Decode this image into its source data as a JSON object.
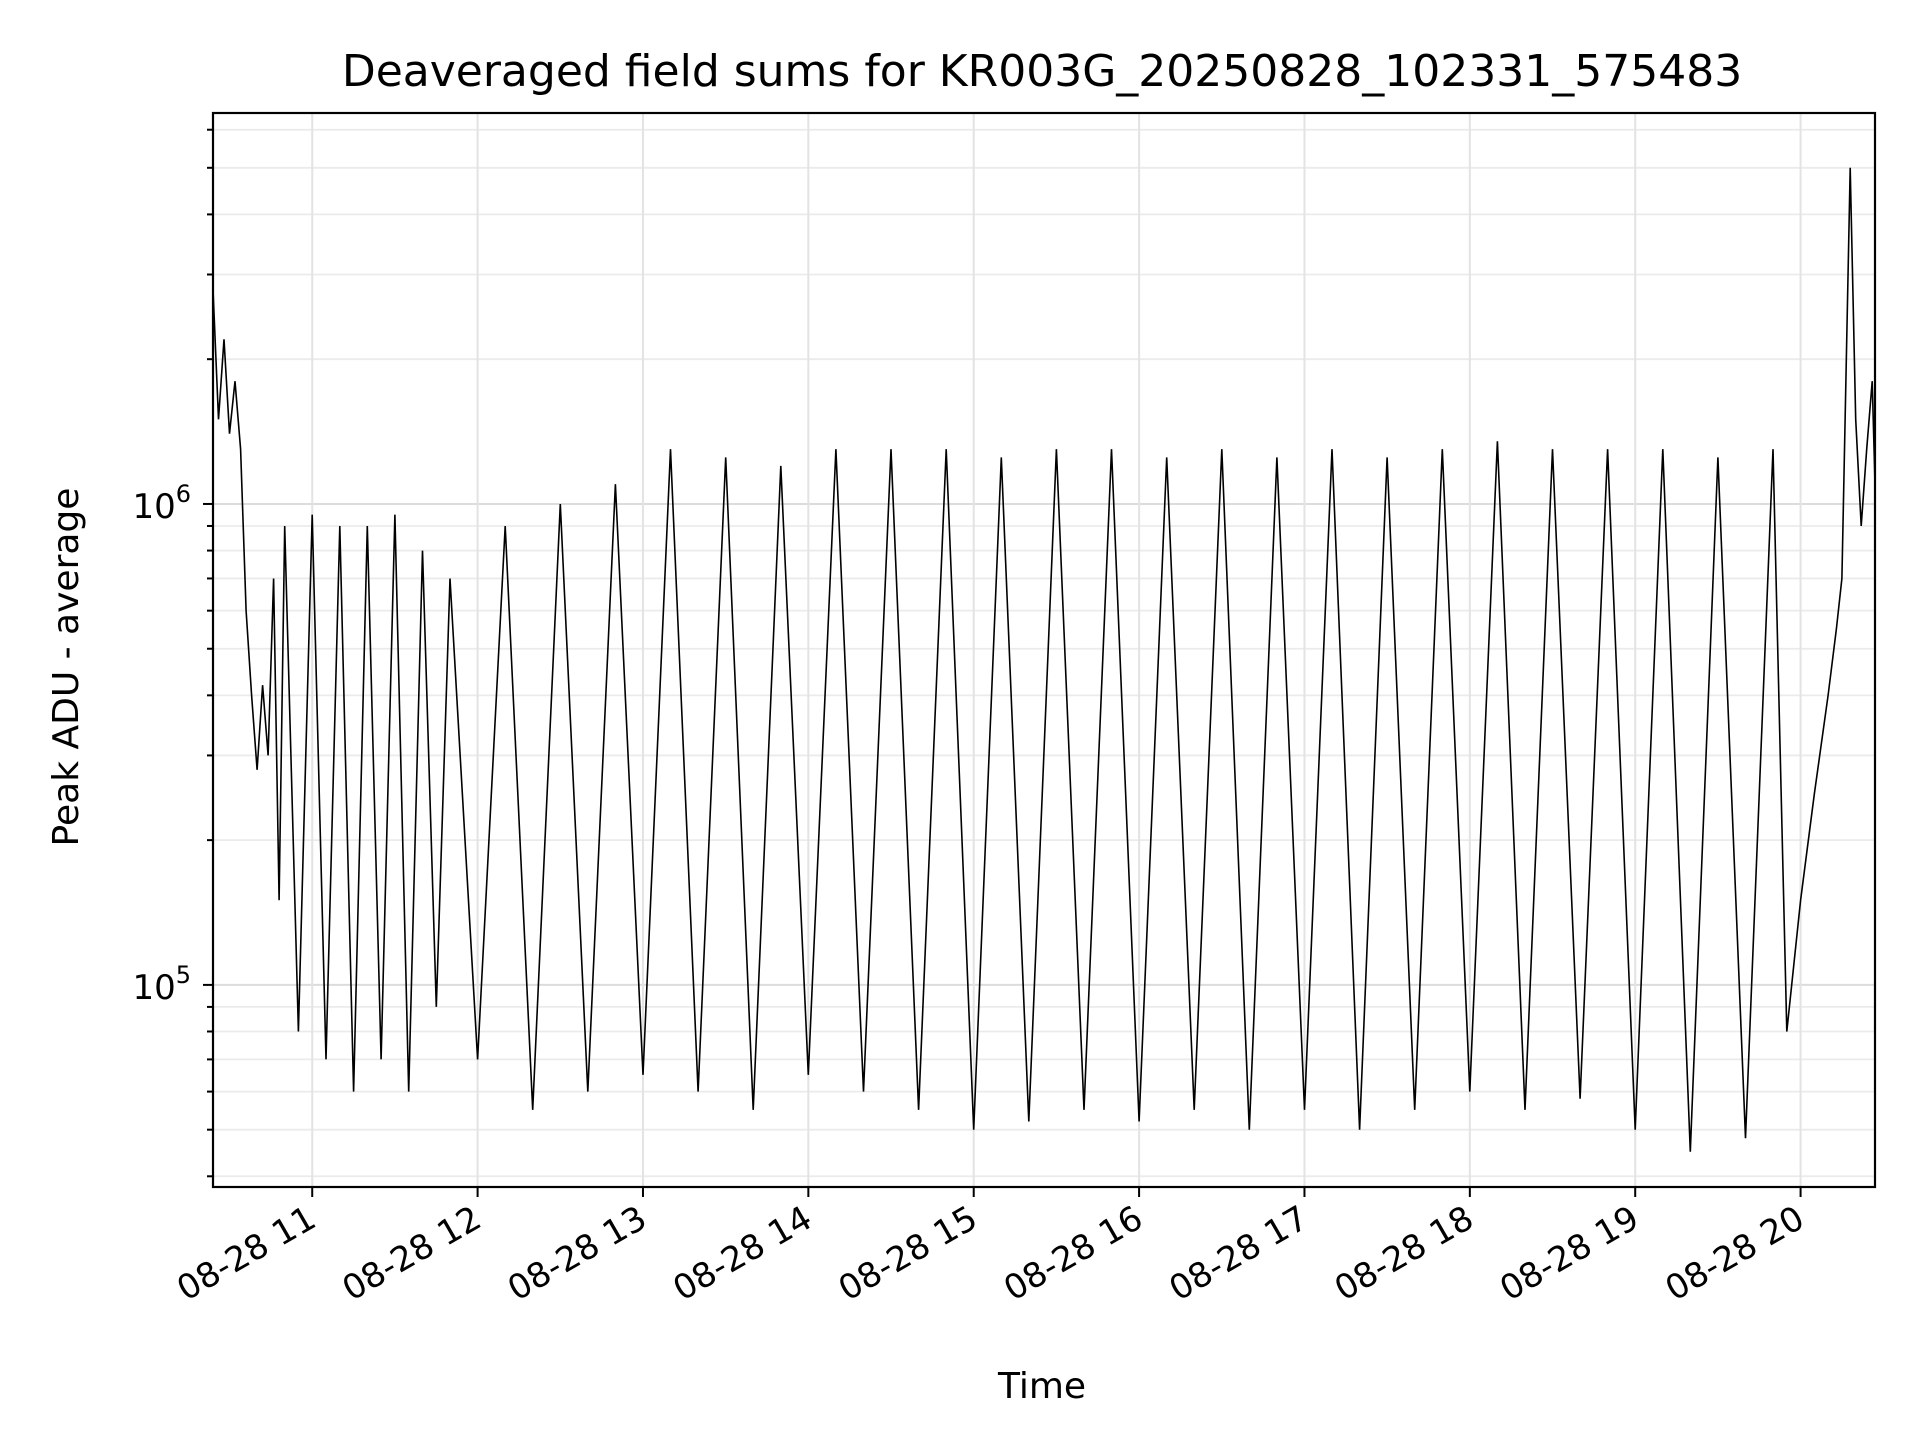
{
  "chart_data": {
    "type": "line",
    "title": "Deaveraged field sums for KR003G_20250828_102331_575483",
    "xlabel": "Time",
    "ylabel": "Peak ADU - average",
    "yscale": "log",
    "grid": true,
    "x_range": [
      "08-28 10:24",
      "08-28 20:27"
    ],
    "ylim": [
      38000,
      6500000
    ],
    "x_tick_labels": [
      "08-28 11",
      "08-28 12",
      "08-28 13",
      "08-28 14",
      "08-28 15",
      "08-28 16",
      "08-28 17",
      "08-28 18",
      "08-28 19",
      "08-28 20"
    ],
    "y_tick_labels": [
      {
        "value": 100000,
        "base": "10",
        "exponent": "5"
      },
      {
        "value": 1000000,
        "base": "10",
        "exponent": "6"
      }
    ],
    "line_color": "#000000",
    "series": [
      {
        "name": "",
        "x": [
          "10:24",
          "10:26",
          "10:28",
          "10:30",
          "10:32",
          "10:34",
          "10:36",
          "10:38",
          "10:40",
          "10:42",
          "10:44",
          "10:46",
          "10:48",
          "10:50",
          "10:55",
          "11:00",
          "11:05",
          "11:10",
          "11:15",
          "11:20",
          "11:25",
          "11:30",
          "11:35",
          "11:40",
          "11:45",
          "11:50",
          "12:00",
          "12:10",
          "12:20",
          "12:30",
          "12:40",
          "12:50",
          "13:00",
          "13:10",
          "13:20",
          "13:30",
          "13:40",
          "13:50",
          "14:00",
          "14:10",
          "14:20",
          "14:30",
          "14:40",
          "14:50",
          "15:00",
          "15:10",
          "15:20",
          "15:30",
          "15:40",
          "15:50",
          "16:00",
          "16:10",
          "16:20",
          "16:30",
          "16:40",
          "16:50",
          "17:00",
          "17:10",
          "17:20",
          "17:30",
          "17:40",
          "17:50",
          "18:00",
          "18:10",
          "18:20",
          "18:30",
          "18:40",
          "18:50",
          "19:00",
          "19:10",
          "19:20",
          "19:30",
          "19:40",
          "19:50",
          "19:55",
          "20:00",
          "20:05",
          "20:10",
          "20:13",
          "20:15",
          "20:18",
          "20:20",
          "20:22",
          "20:24",
          "20:26",
          "20:27"
        ],
        "y": [
          2800000,
          1500000,
          2200000,
          1400000,
          1800000,
          1300000,
          600000,
          400000,
          280000,
          420000,
          300000,
          700000,
          150000,
          900000,
          80000,
          950000,
          70000,
          900000,
          60000,
          900000,
          70000,
          950000,
          60000,
          800000,
          90000,
          700000,
          70000,
          900000,
          55000,
          1000000,
          60000,
          1100000,
          65000,
          1300000,
          60000,
          1250000,
          55000,
          1200000,
          65000,
          1300000,
          60000,
          1300000,
          55000,
          1300000,
          50000,
          1250000,
          52000,
          1300000,
          55000,
          1300000,
          52000,
          1250000,
          55000,
          1300000,
          50000,
          1250000,
          55000,
          1300000,
          50000,
          1250000,
          55000,
          1300000,
          60000,
          1350000,
          55000,
          1300000,
          58000,
          1300000,
          50000,
          1300000,
          45000,
          1250000,
          48000,
          1300000,
          80000,
          150000,
          250000,
          400000,
          550000,
          700000,
          5000000,
          1500000,
          900000,
          1300000,
          1800000,
          1100000
        ]
      }
    ]
  }
}
